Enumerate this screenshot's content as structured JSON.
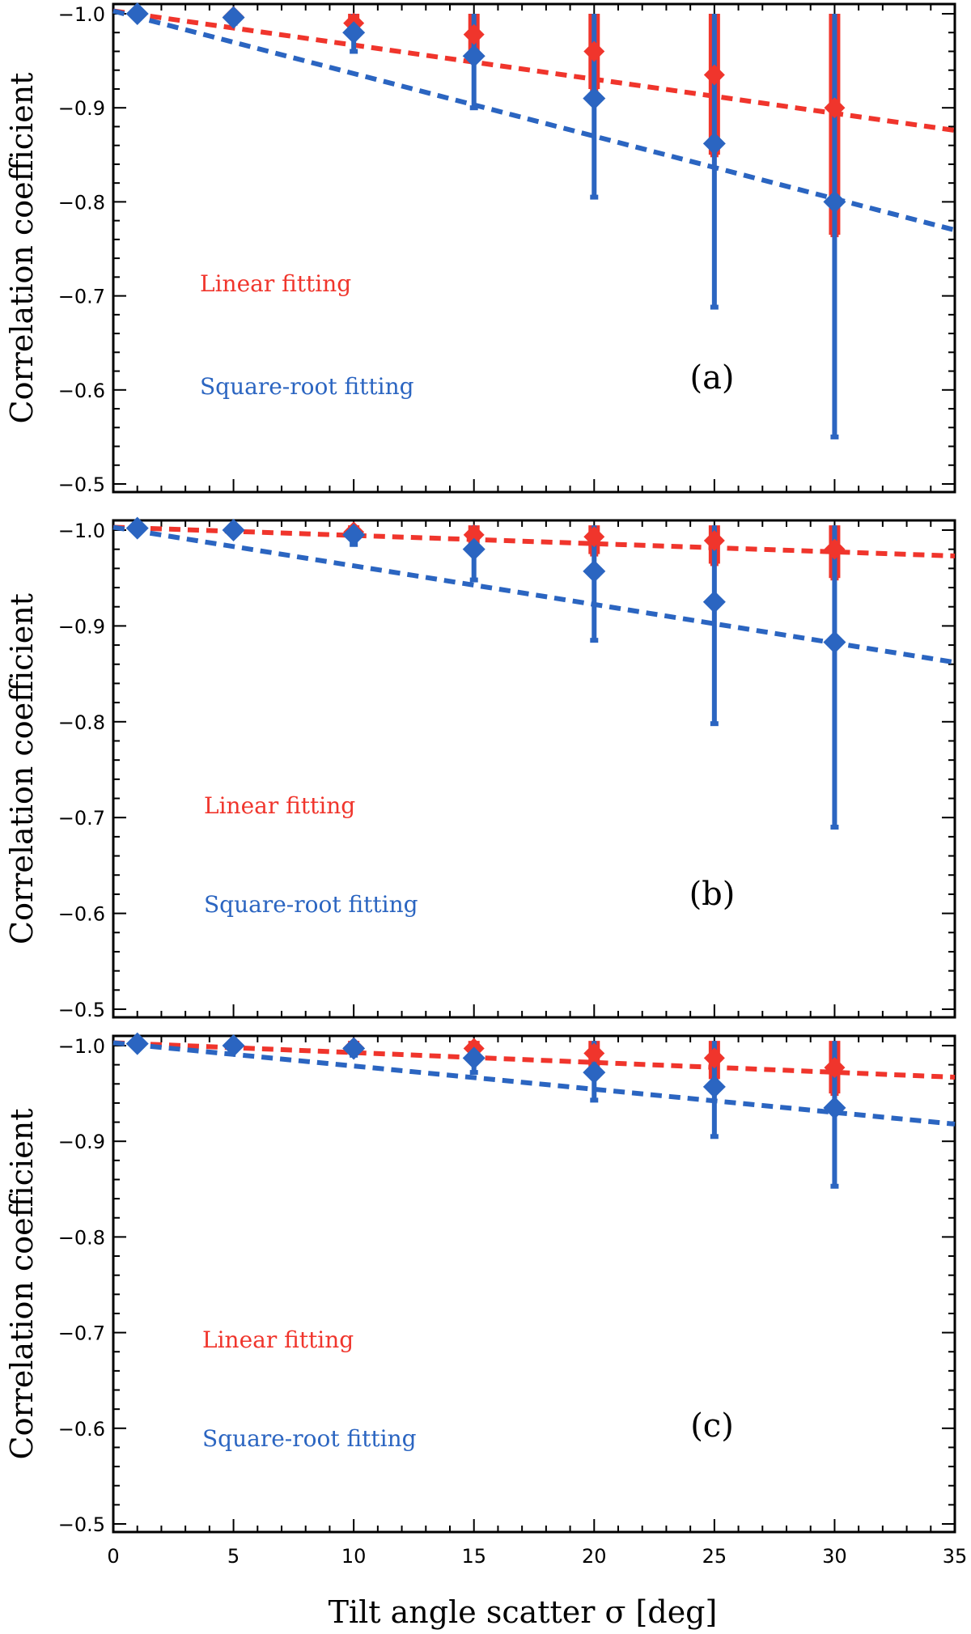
{
  "colors": {
    "linear": "#f0352c",
    "sqrt": "#2b65c1",
    "axis": "#000000"
  },
  "shared_xlabel": "Tilt angle scatter  σ [deg]",
  "chart_data": [
    {
      "type": "line",
      "panel_label": "(a)",
      "ylabel": "Correlation coefficient",
      "xlim": [
        0,
        35
      ],
      "ylim": [
        -0.5,
        -1.0
      ],
      "x_ticks": [
        0,
        5,
        10,
        15,
        20,
        25,
        30,
        35
      ],
      "x_tick_labels": [
        "",
        "",
        "",
        "",
        "",
        "",
        "",
        ""
      ],
      "y_ticks": [
        -1.0,
        -0.9,
        -0.8,
        -0.7,
        -0.6,
        -0.5
      ],
      "y_tick_labels": [
        "−1.0",
        "−0.9",
        "−0.8",
        "−0.7",
        "−0.6",
        "−0.5"
      ],
      "legend": [
        "Linear  fitting",
        "Square-root fitting"
      ],
      "series": [
        {
          "name": "Linear  fitting",
          "x": [
            1,
            5,
            10,
            15,
            20,
            25,
            30
          ],
          "y": [
            -1.0,
            -0.997,
            -0.99,
            -0.978,
            -0.96,
            -0.935,
            -0.9
          ],
          "err_low": [
            -1.0,
            -1.0,
            -1.0,
            -1.0,
            -1.0,
            -1.0,
            -1.0
          ],
          "err_high": [
            -1.0,
            -0.994,
            -0.98,
            -0.955,
            -0.92,
            -0.85,
            -0.765
          ],
          "fit_x": [
            0,
            35
          ],
          "fit_y": [
            -1.003,
            -0.876
          ]
        },
        {
          "name": "Square-root fitting",
          "x": [
            1,
            5,
            10,
            15,
            20,
            25,
            30
          ],
          "y": [
            -1.0,
            -0.996,
            -0.98,
            -0.955,
            -0.91,
            -0.862,
            -0.8
          ],
          "err_low": [
            -1.0,
            -1.0,
            -1.0,
            -1.0,
            -1.0,
            -1.0,
            -1.0
          ],
          "err_high": [
            -1.0,
            -0.99,
            -0.96,
            -0.9,
            -0.805,
            -0.688,
            -0.55
          ],
          "fit_x": [
            0,
            35
          ],
          "fit_y": [
            -1.003,
            -0.77
          ]
        }
      ]
    },
    {
      "type": "line",
      "panel_label": "(b)",
      "ylabel": "Correlation coefficient",
      "xlim": [
        0,
        35
      ],
      "ylim": [
        -0.5,
        -1.0
      ],
      "x_ticks": [
        0,
        5,
        10,
        15,
        20,
        25,
        30,
        35
      ],
      "x_tick_labels": [
        "",
        "",
        "",
        "",
        "",
        "",
        "",
        ""
      ],
      "y_ticks": [
        -1.0,
        -0.9,
        -0.8,
        -0.7,
        -0.6,
        -0.5
      ],
      "y_tick_labels": [
        "−1.0",
        "−0.9",
        "−0.8",
        "−0.7",
        "−0.6",
        "−0.5"
      ],
      "legend": [
        "Linear    fitting",
        "Square-root fitting"
      ],
      "series": [
        {
          "name": "Linear    fitting",
          "x": [
            1,
            5,
            10,
            15,
            20,
            25,
            30
          ],
          "y": [
            -1.002,
            -1.0,
            -0.998,
            -0.995,
            -0.993,
            -0.989,
            -0.98
          ],
          "err_low": [
            -1.005,
            -1.005,
            -1.005,
            -1.005,
            -1.005,
            -1.005,
            -1.005
          ],
          "err_high": [
            -1.0,
            -0.998,
            -0.994,
            -0.986,
            -0.975,
            -0.965,
            -0.95
          ],
          "fit_x": [
            0,
            35
          ],
          "fit_y": [
            -1.003,
            -0.973
          ]
        },
        {
          "name": "Square-root fitting",
          "x": [
            1,
            5,
            10,
            15,
            20,
            25,
            30
          ],
          "y": [
            -1.002,
            -1.0,
            -0.995,
            -0.98,
            -0.957,
            -0.925,
            -0.883
          ],
          "err_low": [
            -1.005,
            -1.005,
            -1.005,
            -1.005,
            -1.005,
            -1.005,
            -1.005
          ],
          "err_high": [
            -0.998,
            -0.996,
            -0.985,
            -0.948,
            -0.885,
            -0.798,
            -0.69
          ],
          "fit_x": [
            0,
            35
          ],
          "fit_y": [
            -1.003,
            -0.862
          ]
        }
      ]
    },
    {
      "type": "line",
      "panel_label": "(c)",
      "ylabel": "Correlation coefficient",
      "xlim": [
        0,
        35
      ],
      "ylim": [
        -0.5,
        -1.0
      ],
      "x_ticks": [
        0,
        5,
        10,
        15,
        20,
        25,
        30,
        35
      ],
      "x_tick_labels": [
        "0",
        "5",
        "10",
        "15",
        "20",
        "25",
        "30",
        "35"
      ],
      "y_ticks": [
        -1.0,
        -0.9,
        -0.8,
        -0.7,
        -0.6,
        -0.5
      ],
      "y_tick_labels": [
        "−1.0",
        "−0.9",
        "−0.8",
        "−0.7",
        "−0.6",
        "−0.5"
      ],
      "legend": [
        "Linear   fitting",
        "Square-root fitting"
      ],
      "series": [
        {
          "name": "Linear   fitting",
          "x": [
            1,
            5,
            10,
            15,
            20,
            25,
            30
          ],
          "y": [
            -1.002,
            -1.0,
            -0.998,
            -0.997,
            -0.992,
            -0.987,
            -0.977
          ],
          "err_low": [
            -1.005,
            -1.005,
            -1.005,
            -1.005,
            -1.005,
            -1.005,
            -1.005
          ],
          "err_high": [
            -1.0,
            -0.998,
            -0.995,
            -0.99,
            -0.978,
            -0.965,
            -0.95
          ],
          "fit_x": [
            0,
            35
          ],
          "fit_y": [
            -1.003,
            -0.967
          ]
        },
        {
          "name": "Square-root fitting",
          "x": [
            1,
            5,
            10,
            15,
            20,
            25,
            30
          ],
          "y": [
            -1.002,
            -1.0,
            -0.997,
            -0.987,
            -0.972,
            -0.957,
            -0.935
          ],
          "err_low": [
            -1.005,
            -1.005,
            -1.005,
            -1.005,
            -1.005,
            -1.005,
            -1.005
          ],
          "err_high": [
            -0.998,
            -0.996,
            -0.99,
            -0.972,
            -0.943,
            -0.905,
            -0.853
          ],
          "fit_x": [
            0,
            35
          ],
          "fit_y": [
            -1.003,
            -0.918
          ]
        }
      ]
    }
  ]
}
